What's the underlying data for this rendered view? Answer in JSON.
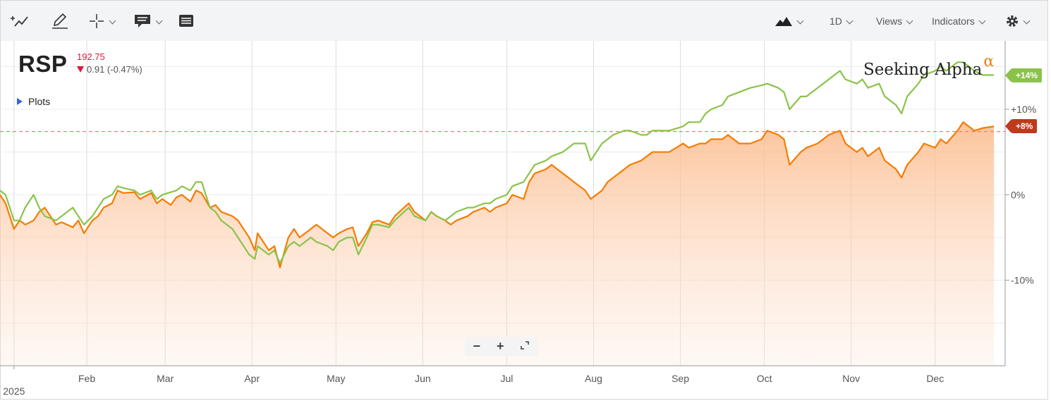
{
  "toolbar": {
    "left_icons": [
      "draw-trend-icon",
      "pencil-icon",
      "crosshair-icon",
      "comment-icon",
      "news-icon"
    ],
    "chart_type_icon": "mountain-chart-icon",
    "period": "1D",
    "views": "Views",
    "indicators": "Indicators",
    "settings_icon": "gear-icon"
  },
  "header": {
    "ticker": "RSP",
    "price": "192.75",
    "change": "0.91 (-0.47%)",
    "change_direction": "down",
    "plots_label": "Plots"
  },
  "logo": {
    "text": "Seeking Alpha",
    "alpha": "α"
  },
  "zoom": {
    "minus": "−",
    "plus": "+",
    "fullscreen_icon": "expand-icon"
  },
  "badges": {
    "green": "+14%",
    "orange": "+8%"
  },
  "colors": {
    "green": "#8bc34a",
    "orange": "#f57c00",
    "area": "#fcb98a",
    "badge_green": "#8bc34a",
    "badge_orange": "#c0391b",
    "refline": "#e8836a"
  },
  "chart_data": {
    "type": "line",
    "title": "",
    "xlabel": "",
    "ylabel": "",
    "x_axis": {
      "year_label": "2025",
      "months": [
        "Feb",
        "Mar",
        "Apr",
        "May",
        "Jun",
        "Jul",
        "Aug",
        "Sep",
        "Oct",
        "Nov",
        "Dec"
      ],
      "range": [
        "2025-01-01",
        "2025-12-22"
      ]
    },
    "y_axis": {
      "ticks": [
        10,
        0,
        -10
      ],
      "tick_labels": [
        "+10%",
        "0%",
        "-10%"
      ],
      "range": [
        -20,
        18
      ]
    },
    "grid": true,
    "reference_line": 7.4,
    "series": [
      {
        "name": "",
        "color": "#f57c00",
        "area": true,
        "points": [
          [
            "2025-01-01",
            0
          ],
          [
            "2025-01-03",
            -1
          ],
          [
            "2025-01-06",
            -4
          ],
          [
            "2025-01-08",
            -3
          ],
          [
            "2025-01-10",
            -3.5
          ],
          [
            "2025-01-13",
            -3
          ],
          [
            "2025-01-15",
            -2
          ],
          [
            "2025-01-17",
            -1.5
          ],
          [
            "2025-01-21",
            -3.5
          ],
          [
            "2025-01-23",
            -3.2
          ],
          [
            "2025-01-27",
            -3.8
          ],
          [
            "2025-01-29",
            -3
          ],
          [
            "2025-01-31",
            -4.5
          ],
          [
            "2025-02-03",
            -3
          ],
          [
            "2025-02-05",
            -2.5
          ],
          [
            "2025-02-07",
            -1.5
          ],
          [
            "2025-02-10",
            -1
          ],
          [
            "2025-02-12",
            0.5
          ],
          [
            "2025-02-14",
            0.2
          ],
          [
            "2025-02-18",
            0.3
          ],
          [
            "2025-02-20",
            -0.5
          ],
          [
            "2025-02-24",
            0.2
          ],
          [
            "2025-02-26",
            -1
          ],
          [
            "2025-02-28",
            -0.5
          ],
          [
            "2025-03-03",
            -1.2
          ],
          [
            "2025-03-05",
            -0.3
          ],
          [
            "2025-03-07",
            0
          ],
          [
            "2025-03-10",
            -0.8
          ],
          [
            "2025-03-12",
            0.5
          ],
          [
            "2025-03-14",
            0.2
          ],
          [
            "2025-03-17",
            -1.5
          ],
          [
            "2025-03-19",
            -1.2
          ],
          [
            "2025-03-21",
            -2
          ],
          [
            "2025-03-25",
            -2.5
          ],
          [
            "2025-03-27",
            -3
          ],
          [
            "2025-03-31",
            -5
          ],
          [
            "2025-04-02",
            -6.5
          ],
          [
            "2025-04-03",
            -4.5
          ],
          [
            "2025-04-07",
            -6.5
          ],
          [
            "2025-04-09",
            -6
          ],
          [
            "2025-04-11",
            -8.5
          ],
          [
            "2025-04-14",
            -5
          ],
          [
            "2025-04-16",
            -4
          ],
          [
            "2025-04-18",
            -5
          ],
          [
            "2025-04-22",
            -4
          ],
          [
            "2025-04-24",
            -3.5
          ],
          [
            "2025-04-28",
            -4.5
          ],
          [
            "2025-04-30",
            -5
          ],
          [
            "2025-05-02",
            -4.5
          ],
          [
            "2025-05-05",
            -4
          ],
          [
            "2025-05-07",
            -3.8
          ],
          [
            "2025-05-09",
            -6
          ],
          [
            "2025-05-12",
            -4.5
          ],
          [
            "2025-05-14",
            -3.2
          ],
          [
            "2025-05-16",
            -3
          ],
          [
            "2025-05-20",
            -3.5
          ],
          [
            "2025-05-22",
            -2.5
          ],
          [
            "2025-05-27",
            -1
          ],
          [
            "2025-05-29",
            -2
          ],
          [
            "2025-06-02",
            -3
          ],
          [
            "2025-06-04",
            -2
          ],
          [
            "2025-06-06",
            -2.5
          ],
          [
            "2025-06-09",
            -3
          ],
          [
            "2025-06-11",
            -3.5
          ],
          [
            "2025-06-13",
            -3
          ],
          [
            "2025-06-17",
            -2.5
          ],
          [
            "2025-06-19",
            -2
          ],
          [
            "2025-06-23",
            -1.5
          ],
          [
            "2025-06-25",
            -2
          ],
          [
            "2025-06-27",
            -1.5
          ],
          [
            "2025-07-01",
            -1
          ],
          [
            "2025-07-03",
            0
          ],
          [
            "2025-07-07",
            -0.5
          ],
          [
            "2025-07-09",
            1.5
          ],
          [
            "2025-07-11",
            2.5
          ],
          [
            "2025-07-15",
            3
          ],
          [
            "2025-07-17",
            3.5
          ],
          [
            "2025-07-21",
            2.5
          ],
          [
            "2025-07-23",
            2
          ],
          [
            "2025-07-25",
            1.5
          ],
          [
            "2025-07-29",
            0.5
          ],
          [
            "2025-07-31",
            -0.5
          ],
          [
            "2025-08-04",
            0.5
          ],
          [
            "2025-08-06",
            1.5
          ],
          [
            "2025-08-08",
            2
          ],
          [
            "2025-08-12",
            3
          ],
          [
            "2025-08-14",
            3.5
          ],
          [
            "2025-08-18",
            4
          ],
          [
            "2025-08-20",
            4.5
          ],
          [
            "2025-08-22",
            5
          ],
          [
            "2025-08-26",
            5
          ],
          [
            "2025-08-28",
            5
          ],
          [
            "2025-09-02",
            6
          ],
          [
            "2025-09-04",
            5.5
          ],
          [
            "2025-09-08",
            6
          ],
          [
            "2025-09-10",
            6
          ],
          [
            "2025-09-12",
            6.5
          ],
          [
            "2025-09-16",
            6.5
          ],
          [
            "2025-09-18",
            7
          ],
          [
            "2025-09-22",
            6
          ],
          [
            "2025-09-24",
            6
          ],
          [
            "2025-09-26",
            6
          ],
          [
            "2025-09-30",
            6.5
          ],
          [
            "2025-10-02",
            7.5
          ],
          [
            "2025-10-06",
            7
          ],
          [
            "2025-10-08",
            6.5
          ],
          [
            "2025-10-10",
            3.5
          ],
          [
            "2025-10-14",
            5
          ],
          [
            "2025-10-16",
            5.5
          ],
          [
            "2025-10-20",
            6
          ],
          [
            "2025-10-22",
            6.5
          ],
          [
            "2025-10-24",
            7
          ],
          [
            "2025-10-28",
            7.5
          ],
          [
            "2025-10-30",
            6
          ],
          [
            "2025-11-03",
            5
          ],
          [
            "2025-11-05",
            5.5
          ],
          [
            "2025-11-07",
            4.5
          ],
          [
            "2025-11-11",
            5.5
          ],
          [
            "2025-11-13",
            4
          ],
          [
            "2025-11-17",
            3
          ],
          [
            "2025-11-19",
            2
          ],
          [
            "2025-11-21",
            3.5
          ],
          [
            "2025-11-25",
            5
          ],
          [
            "2025-11-27",
            6
          ],
          [
            "2025-12-01",
            5.5
          ],
          [
            "2025-12-03",
            6.5
          ],
          [
            "2025-12-05",
            6
          ],
          [
            "2025-12-09",
            7.5
          ],
          [
            "2025-12-11",
            8.5
          ],
          [
            "2025-12-15",
            7.5
          ],
          [
            "2025-12-18",
            7.8
          ],
          [
            "2025-12-22",
            8
          ]
        ]
      },
      {
        "name": "",
        "color": "#8bc34a",
        "area": false,
        "points": [
          [
            "2025-01-01",
            0.5
          ],
          [
            "2025-01-03",
            0
          ],
          [
            "2025-01-06",
            -3
          ],
          [
            "2025-01-08",
            -3
          ],
          [
            "2025-01-10",
            -1.5
          ],
          [
            "2025-01-13",
            0
          ],
          [
            "2025-01-15",
            -1.5
          ],
          [
            "2025-01-17",
            -2.5
          ],
          [
            "2025-01-21",
            -3
          ],
          [
            "2025-01-23",
            -2.5
          ],
          [
            "2025-01-27",
            -1.5
          ],
          [
            "2025-01-29",
            -2.5
          ],
          [
            "2025-01-31",
            -3.5
          ],
          [
            "2025-02-03",
            -2.5
          ],
          [
            "2025-02-05",
            -1.5
          ],
          [
            "2025-02-07",
            -0.5
          ],
          [
            "2025-02-10",
            0
          ],
          [
            "2025-02-12",
            1
          ],
          [
            "2025-02-14",
            0.8
          ],
          [
            "2025-02-18",
            0.5
          ],
          [
            "2025-02-20",
            0
          ],
          [
            "2025-02-24",
            0.5
          ],
          [
            "2025-02-26",
            -0.5
          ],
          [
            "2025-02-28",
            0
          ],
          [
            "2025-03-03",
            0.3
          ],
          [
            "2025-03-05",
            0.5
          ],
          [
            "2025-03-07",
            1
          ],
          [
            "2025-03-10",
            0.5
          ],
          [
            "2025-03-12",
            1.5
          ],
          [
            "2025-03-14",
            1.5
          ],
          [
            "2025-03-17",
            -1.5
          ],
          [
            "2025-03-19",
            -2
          ],
          [
            "2025-03-21",
            -3
          ],
          [
            "2025-03-25",
            -4
          ],
          [
            "2025-03-27",
            -5
          ],
          [
            "2025-03-31",
            -7
          ],
          [
            "2025-04-02",
            -7.5
          ],
          [
            "2025-04-03",
            -6
          ],
          [
            "2025-04-07",
            -7
          ],
          [
            "2025-04-09",
            -6.5
          ],
          [
            "2025-04-11",
            -8
          ],
          [
            "2025-04-14",
            -6
          ],
          [
            "2025-04-16",
            -5.5
          ],
          [
            "2025-04-18",
            -6
          ],
          [
            "2025-04-22",
            -5
          ],
          [
            "2025-04-24",
            -5.5
          ],
          [
            "2025-04-28",
            -6
          ],
          [
            "2025-04-30",
            -6.5
          ],
          [
            "2025-05-02",
            -5.5
          ],
          [
            "2025-05-05",
            -5
          ],
          [
            "2025-05-07",
            -5
          ],
          [
            "2025-05-09",
            -7
          ],
          [
            "2025-05-12",
            -5
          ],
          [
            "2025-05-14",
            -3.5
          ],
          [
            "2025-05-16",
            -3.5
          ],
          [
            "2025-05-20",
            -3.8
          ],
          [
            "2025-05-22",
            -3
          ],
          [
            "2025-05-27",
            -1.5
          ],
          [
            "2025-05-29",
            -2.5
          ],
          [
            "2025-06-02",
            -3
          ],
          [
            "2025-06-04",
            -2
          ],
          [
            "2025-06-06",
            -2.5
          ],
          [
            "2025-06-09",
            -3
          ],
          [
            "2025-06-11",
            -2.5
          ],
          [
            "2025-06-13",
            -2
          ],
          [
            "2025-06-17",
            -1.5
          ],
          [
            "2025-06-19",
            -1.5
          ],
          [
            "2025-06-23",
            -1
          ],
          [
            "2025-06-25",
            -1
          ],
          [
            "2025-06-27",
            -0.5
          ],
          [
            "2025-07-01",
            0
          ],
          [
            "2025-07-03",
            1
          ],
          [
            "2025-07-07",
            1.5
          ],
          [
            "2025-07-09",
            2.5
          ],
          [
            "2025-07-11",
            3.5
          ],
          [
            "2025-07-15",
            4
          ],
          [
            "2025-07-17",
            4.5
          ],
          [
            "2025-07-21",
            5
          ],
          [
            "2025-07-23",
            5.5
          ],
          [
            "2025-07-25",
            6
          ],
          [
            "2025-07-29",
            6
          ],
          [
            "2025-07-31",
            4
          ],
          [
            "2025-08-04",
            6
          ],
          [
            "2025-08-06",
            6.5
          ],
          [
            "2025-08-08",
            7
          ],
          [
            "2025-08-12",
            7.5
          ],
          [
            "2025-08-14",
            7.5
          ],
          [
            "2025-08-18",
            7
          ],
          [
            "2025-08-20",
            7
          ],
          [
            "2025-08-22",
            7.5
          ],
          [
            "2025-08-26",
            7.5
          ],
          [
            "2025-08-28",
            7.5
          ],
          [
            "2025-09-02",
            8
          ],
          [
            "2025-09-04",
            8.5
          ],
          [
            "2025-09-08",
            8.5
          ],
          [
            "2025-09-10",
            9.5
          ],
          [
            "2025-09-12",
            10
          ],
          [
            "2025-09-16",
            10.5
          ],
          [
            "2025-09-18",
            11.5
          ],
          [
            "2025-09-22",
            12
          ],
          [
            "2025-09-26",
            12.5
          ],
          [
            "2025-09-30",
            12.8
          ],
          [
            "2025-10-02",
            13
          ],
          [
            "2025-10-06",
            12.5
          ],
          [
            "2025-10-08",
            12
          ],
          [
            "2025-10-10",
            10
          ],
          [
            "2025-10-14",
            11.5
          ],
          [
            "2025-10-16",
            11.5
          ],
          [
            "2025-10-20",
            12.5
          ],
          [
            "2025-10-22",
            13
          ],
          [
            "2025-10-24",
            13.5
          ],
          [
            "2025-10-28",
            14.5
          ],
          [
            "2025-10-30",
            13.5
          ],
          [
            "2025-11-03",
            13
          ],
          [
            "2025-11-05",
            13.5
          ],
          [
            "2025-11-07",
            12.5
          ],
          [
            "2025-11-11",
            13
          ],
          [
            "2025-11-13",
            11.5
          ],
          [
            "2025-11-17",
            10.5
          ],
          [
            "2025-11-19",
            9.5
          ],
          [
            "2025-11-21",
            11.5
          ],
          [
            "2025-11-25",
            13
          ],
          [
            "2025-11-27",
            14
          ],
          [
            "2025-12-01",
            14.5
          ],
          [
            "2025-12-03",
            15
          ],
          [
            "2025-12-05",
            14.5
          ],
          [
            "2025-12-09",
            15.5
          ],
          [
            "2025-12-11",
            15.5
          ],
          [
            "2025-12-15",
            14.5
          ],
          [
            "2025-12-18",
            14
          ],
          [
            "2025-12-22",
            14
          ]
        ]
      }
    ]
  }
}
